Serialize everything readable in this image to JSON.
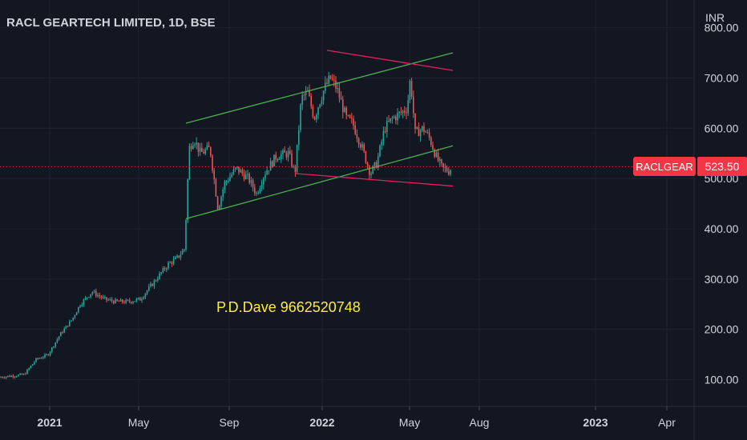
{
  "header": {
    "title": "RACL GEARTECH LIMITED, 1D, BSE",
    "currency": "INR"
  },
  "price_label": {
    "symbol": "RACLGEAR",
    "value": "523.50"
  },
  "annotation": {
    "text": "P.D.Dave 9662520748"
  },
  "colors": {
    "background": "#131722",
    "grid": "#1f2330",
    "up": "#26a69a",
    "down": "#ef5350",
    "channel_green": "#4caf50",
    "channel_pink": "#e91e63",
    "annotation": "#ffeb3b",
    "price_line": "#f23645",
    "axis_text": "#d1d4dc"
  },
  "chart_data": {
    "type": "candlestick",
    "title": "RACL GEARTECH LIMITED, 1D, BSE",
    "y_unit": "INR",
    "ylim": [
      30,
      820
    ],
    "y_ticks": [
      "100.00",
      "200.00",
      "300.00",
      "400.00",
      "500.00",
      "600.00",
      "700.00",
      "800.00"
    ],
    "x_ticks": [
      "2021",
      "May",
      "Sep",
      "2022",
      "May",
      "Aug",
      "2023",
      "Apr"
    ],
    "grid": true,
    "last_price": 523.5,
    "price_path": [
      [
        0,
        105
      ],
      [
        30,
        110
      ],
      [
        45,
        140
      ],
      [
        60,
        150
      ],
      [
        75,
        190
      ],
      [
        90,
        220
      ],
      [
        100,
        250
      ],
      [
        115,
        275
      ],
      [
        130,
        260
      ],
      [
        145,
        255
      ],
      [
        160,
        255
      ],
      [
        175,
        260
      ],
      [
        190,
        290
      ],
      [
        200,
        310
      ],
      [
        210,
        330
      ],
      [
        220,
        340
      ],
      [
        230,
        360
      ],
      [
        232,
        420
      ],
      [
        236,
        560
      ],
      [
        242,
        580
      ],
      [
        250,
        550
      ],
      [
        262,
        560
      ],
      [
        272,
        440
      ],
      [
        280,
        490
      ],
      [
        295,
        520
      ],
      [
        310,
        500
      ],
      [
        320,
        470
      ],
      [
        330,
        510
      ],
      [
        345,
        545
      ],
      [
        360,
        550
      ],
      [
        368,
        510
      ],
      [
        376,
        660
      ],
      [
        384,
        670
      ],
      [
        392,
        620
      ],
      [
        398,
        650
      ],
      [
        405,
        680
      ],
      [
        412,
        700
      ],
      [
        420,
        680
      ],
      [
        432,
        620
      ],
      [
        440,
        610
      ],
      [
        452,
        560
      ],
      [
        462,
        510
      ],
      [
        470,
        530
      ],
      [
        480,
        600
      ],
      [
        490,
        620
      ],
      [
        500,
        630
      ],
      [
        508,
        640
      ],
      [
        512,
        700
      ],
      [
        518,
        590
      ],
      [
        528,
        600
      ],
      [
        536,
        580
      ],
      [
        545,
        540
      ],
      [
        552,
        520
      ],
      [
        560,
        515
      ],
      [
        564,
        523.5
      ]
    ],
    "channels": [
      {
        "color": "green",
        "points": [
          [
            232,
            610
          ],
          [
            565,
            750
          ]
        ]
      },
      {
        "color": "green",
        "points": [
          [
            232,
            420
          ],
          [
            565,
            565
          ]
        ]
      },
      {
        "color": "pink",
        "points": [
          [
            408,
            755
          ],
          [
            565,
            715
          ]
        ]
      },
      {
        "color": "pink",
        "points": [
          [
            368,
            510
          ],
          [
            565,
            485
          ]
        ]
      }
    ]
  }
}
